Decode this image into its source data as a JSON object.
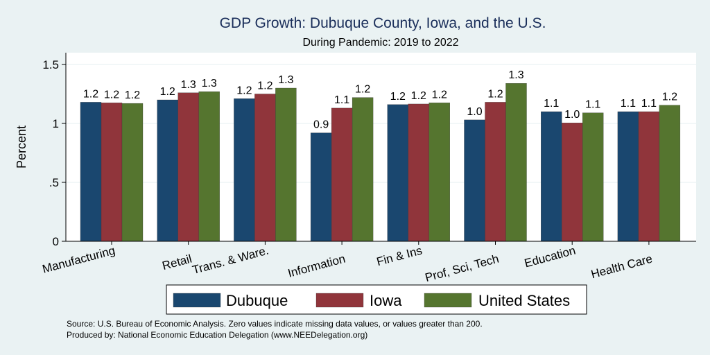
{
  "chart_data": {
    "type": "bar",
    "title": "GDP Growth: Dubuque County, Iowa, and the U.S.",
    "subtitle": "During Pandemic: 2019 to 2022",
    "ylabel": "Percent",
    "xlabel": "",
    "ylim": [
      0,
      1.6
    ],
    "yticks": [
      0,
      0.5,
      1,
      1.5
    ],
    "ytick_labels": [
      "0",
      ".5",
      "1",
      "1.5"
    ],
    "grid": true,
    "legend_position": "bottom",
    "categories": [
      "Manufacturing",
      "Retail",
      "Trans. & Ware.",
      "Information",
      "Fin & Ins",
      "Prof, Sci, Tech",
      "Education",
      "Health Care"
    ],
    "series": [
      {
        "name": "Dubuque",
        "color": "#1a476f",
        "values": [
          1.18,
          1.2,
          1.21,
          0.92,
          1.16,
          1.03,
          1.1,
          1.1
        ],
        "labels": [
          "1.2",
          "1.2",
          "1.2",
          "0.9",
          "1.2",
          "1.0",
          "1.1",
          "1.1"
        ]
      },
      {
        "name": "Iowa",
        "color": "#90353b",
        "values": [
          1.175,
          1.26,
          1.25,
          1.13,
          1.165,
          1.18,
          1.005,
          1.1
        ],
        "labels": [
          "1.2",
          "1.3",
          "1.2",
          "1.1",
          "1.2",
          "1.2",
          "1.0",
          "1.1"
        ]
      },
      {
        "name": "United States",
        "color": "#55752f",
        "values": [
          1.17,
          1.27,
          1.3,
          1.22,
          1.175,
          1.34,
          1.09,
          1.155
        ],
        "labels": [
          "1.2",
          "1.3",
          "1.3",
          "1.2",
          "1.2",
          "1.3",
          "1.1",
          "1.2"
        ]
      }
    ]
  },
  "footer": {
    "source": "Source: U.S. Bureau of Economic Analysis. Zero values indicate missing data values, or values greater than 200.",
    "produced": "Produced by: National Economic Education Delegation (www.NEEDelegation.org)"
  }
}
